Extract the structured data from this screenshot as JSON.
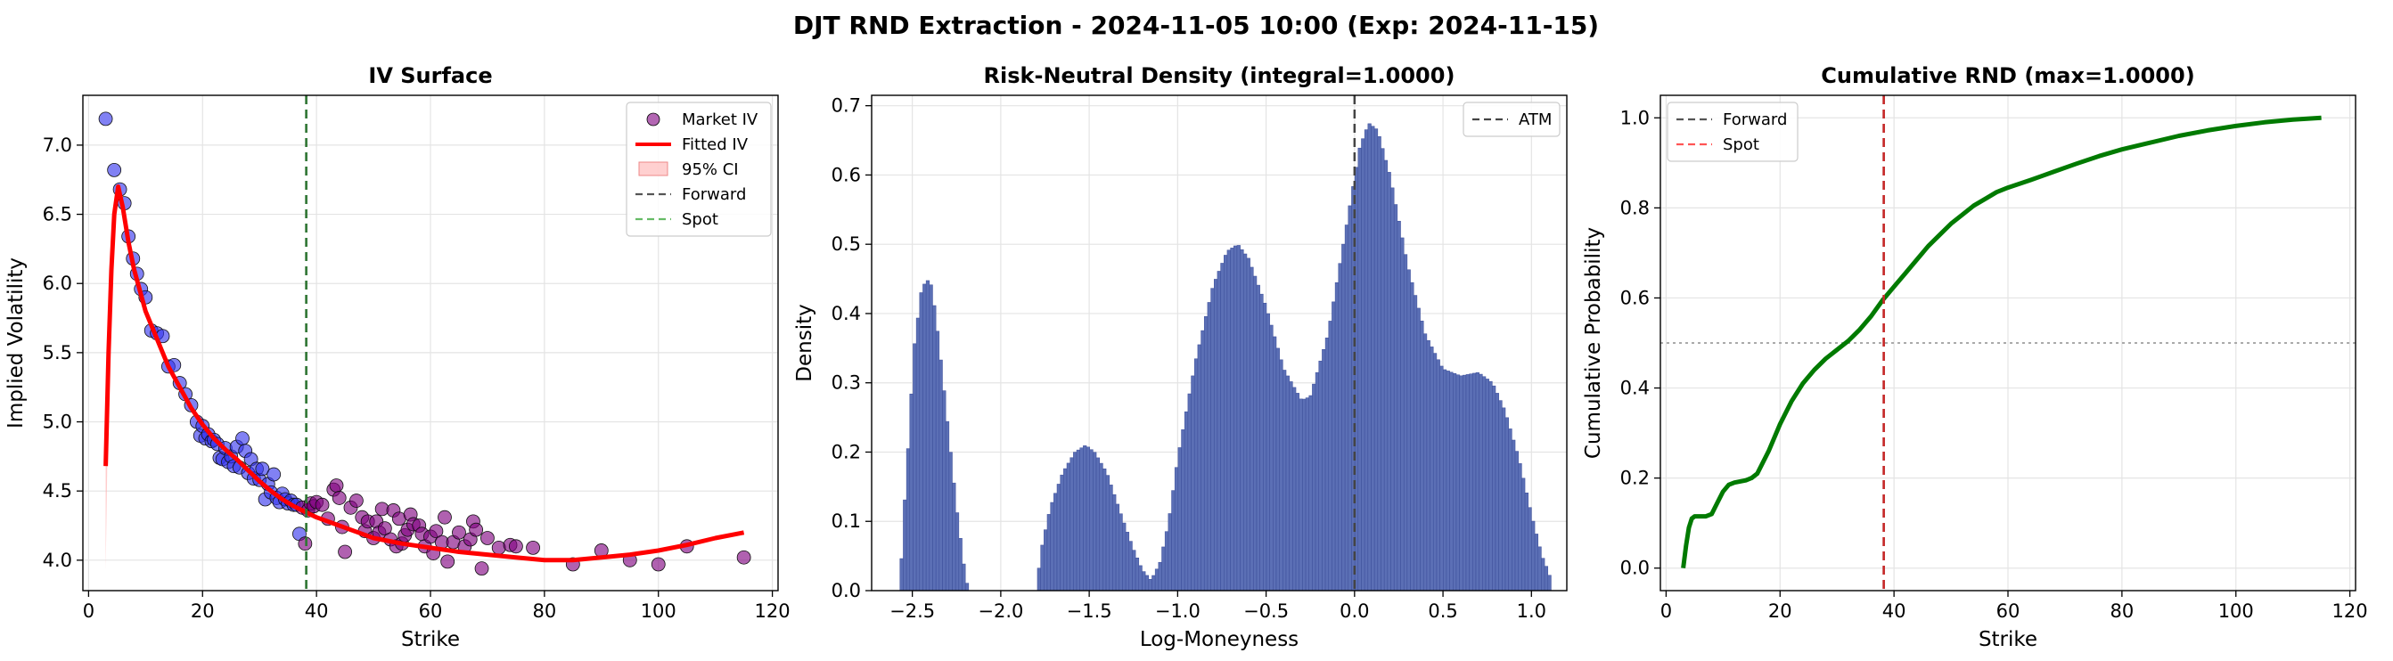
{
  "suptitle": "DJT RND Extraction - 2024-11-05 10:00 (Exp: 2024-11-15)",
  "colors": {
    "market_blue": "#3333ee",
    "market_purple": "#800080",
    "fit": "#ff0000",
    "ci": "#ffaaaa",
    "forward": "#555555",
    "spot": "#2e7d32",
    "spot_right": "#ff5555",
    "hist": "#5b6fb5",
    "cdf": "#007a00"
  },
  "chart_data": [
    {
      "type": "scatter",
      "title": "IV Surface",
      "xlabel": "Strike",
      "ylabel": "Implied Volatility",
      "xlim": [
        -1,
        121
      ],
      "ylim": [
        3.78,
        7.36
      ],
      "xticks": [
        0,
        20,
        40,
        60,
        80,
        100,
        120
      ],
      "yticks": [
        4.0,
        4.5,
        5.0,
        5.5,
        6.0,
        6.5,
        7.0
      ],
      "grid": true,
      "legend_position": "top-right",
      "legend": [
        "Market IV",
        "Fitted IV",
        "95% CI",
        "Forward",
        "Spot"
      ],
      "forward": 38.2,
      "spot": 38.2,
      "market_iv_points": [
        [
          3,
          7.19
        ],
        [
          4.5,
          6.82
        ],
        [
          5.5,
          6.68
        ],
        [
          6.3,
          6.58
        ],
        [
          7,
          6.34
        ],
        [
          7.8,
          6.18
        ],
        [
          8.5,
          6.07
        ],
        [
          9.2,
          5.96
        ],
        [
          10,
          5.9
        ],
        [
          11,
          5.66
        ],
        [
          12,
          5.64
        ],
        [
          13,
          5.62
        ],
        [
          14,
          5.4
        ],
        [
          15,
          5.41
        ],
        [
          16,
          5.28
        ],
        [
          17,
          5.2
        ],
        [
          18,
          5.12
        ],
        [
          19,
          5.0
        ],
        [
          19.6,
          4.9
        ],
        [
          20,
          4.97
        ],
        [
          20.5,
          4.88
        ],
        [
          21,
          4.91
        ],
        [
          21.6,
          4.86
        ],
        [
          22,
          4.87
        ],
        [
          22.6,
          4.84
        ],
        [
          23,
          4.74
        ],
        [
          23.5,
          4.73
        ],
        [
          24,
          4.81
        ],
        [
          24.5,
          4.71
        ],
        [
          25,
          4.75
        ],
        [
          25.5,
          4.68
        ],
        [
          26,
          4.82
        ],
        [
          26.5,
          4.67
        ],
        [
          27,
          4.88
        ],
        [
          27.5,
          4.79
        ],
        [
          28,
          4.63
        ],
        [
          28.5,
          4.73
        ],
        [
          29,
          4.59
        ],
        [
          29.5,
          4.66
        ],
        [
          30,
          4.58
        ],
        [
          30.5,
          4.66
        ],
        [
          31,
          4.44
        ],
        [
          31.5,
          4.55
        ],
        [
          32,
          4.49
        ],
        [
          32.5,
          4.62
        ],
        [
          33,
          4.45
        ],
        [
          33.5,
          4.42
        ],
        [
          34,
          4.48
        ],
        [
          34.5,
          4.44
        ],
        [
          35,
          4.41
        ],
        [
          35.5,
          4.43
        ],
        [
          36,
          4.4
        ],
        [
          36.5,
          4.4
        ],
        [
          37,
          4.19
        ],
        [
          37.5,
          4.38
        ],
        [
          38,
          4.12
        ],
        [
          38.5,
          4.36
        ],
        [
          39,
          4.41
        ],
        [
          39.5,
          4.39
        ],
        [
          40,
          4.42
        ],
        [
          41,
          4.4
        ],
        [
          42,
          4.3
        ],
        [
          43,
          4.51
        ],
        [
          43.5,
          4.54
        ],
        [
          44,
          4.45
        ],
        [
          44.5,
          4.24
        ],
        [
          45,
          4.06
        ],
        [
          46,
          4.38
        ],
        [
          47,
          4.43
        ],
        [
          48,
          4.31
        ],
        [
          48.5,
          4.21
        ],
        [
          49,
          4.28
        ],
        [
          50,
          4.16
        ],
        [
          50.5,
          4.28
        ],
        [
          51,
          4.2
        ],
        [
          51.5,
          4.37
        ],
        [
          52,
          4.23
        ],
        [
          53,
          4.15
        ],
        [
          53.5,
          4.36
        ],
        [
          54,
          4.1
        ],
        [
          54.5,
          4.3
        ],
        [
          55,
          4.12
        ],
        [
          55.5,
          4.18
        ],
        [
          56,
          4.22
        ],
        [
          56.5,
          4.33
        ],
        [
          57,
          4.26
        ],
        [
          58,
          4.25
        ],
        [
          58.5,
          4.19
        ],
        [
          59,
          4.1
        ],
        [
          60,
          4.17
        ],
        [
          60.5,
          4.05
        ],
        [
          61,
          4.21
        ],
        [
          62,
          4.13
        ],
        [
          62.5,
          4.31
        ],
        [
          63,
          3.99
        ],
        [
          64,
          4.13
        ],
        [
          65,
          4.2
        ],
        [
          66,
          4.1
        ],
        [
          67,
          4.15
        ],
        [
          67.5,
          4.28
        ],
        [
          68,
          4.22
        ],
        [
          69,
          3.94
        ],
        [
          70,
          4.16
        ],
        [
          72,
          4.09
        ],
        [
          74,
          4.11
        ],
        [
          75,
          4.1
        ],
        [
          78,
          4.09
        ],
        [
          85,
          3.97
        ],
        [
          90,
          4.07
        ],
        [
          95,
          4.0
        ],
        [
          100,
          3.97
        ],
        [
          105,
          4.1
        ],
        [
          115,
          4.02
        ]
      ],
      "fitted_iv": [
        [
          3,
          4.68
        ],
        [
          3.5,
          5.5
        ],
        [
          4,
          6.1
        ],
        [
          4.5,
          6.5
        ],
        [
          5.2,
          6.7
        ],
        [
          6,
          6.55
        ],
        [
          7,
          6.3
        ],
        [
          8,
          6.1
        ],
        [
          9,
          5.95
        ],
        [
          10,
          5.8
        ],
        [
          12,
          5.6
        ],
        [
          14,
          5.4
        ],
        [
          16,
          5.25
        ],
        [
          18,
          5.1
        ],
        [
          20,
          4.98
        ],
        [
          22,
          4.88
        ],
        [
          24,
          4.8
        ],
        [
          26,
          4.73
        ],
        [
          28,
          4.65
        ],
        [
          30,
          4.57
        ],
        [
          32,
          4.5
        ],
        [
          34,
          4.44
        ],
        [
          36,
          4.39
        ],
        [
          38,
          4.35
        ],
        [
          40,
          4.31
        ],
        [
          42,
          4.28
        ],
        [
          44,
          4.25
        ],
        [
          46,
          4.22
        ],
        [
          48,
          4.19
        ],
        [
          50,
          4.16
        ],
        [
          55,
          4.12
        ],
        [
          60,
          4.09
        ],
        [
          65,
          4.06
        ],
        [
          70,
          4.04
        ],
        [
          75,
          4.02
        ],
        [
          80,
          4.0
        ],
        [
          85,
          4.0
        ],
        [
          90,
          4.02
        ],
        [
          95,
          4.04
        ],
        [
          100,
          4.07
        ],
        [
          105,
          4.11
        ],
        [
          110,
          4.16
        ],
        [
          115,
          4.2
        ]
      ],
      "ci_band": [
        [
          3,
          3.93,
          4.68
        ],
        [
          3.5,
          5.3,
          5.55
        ],
        [
          4,
          6.0,
          6.15
        ]
      ]
    },
    {
      "type": "bar",
      "title": "Risk-Neutral Density (integral=1.0000)",
      "xlabel": "Log-Moneyness",
      "ylabel": "Density",
      "xlim": [
        -2.73,
        1.2
      ],
      "ylim": [
        0,
        0.715
      ],
      "xticks": [
        -2.5,
        -2.0,
        -1.5,
        -1.0,
        -0.5,
        0.0,
        0.5,
        1.0
      ],
      "yticks": [
        0.0,
        0.1,
        0.2,
        0.3,
        0.4,
        0.5,
        0.6,
        0.7
      ],
      "grid": true,
      "legend_position": "top-right",
      "legend": [
        "ATM"
      ],
      "atm": 0.0,
      "density_curve": [
        [
          -2.57,
          0.0
        ],
        [
          -2.55,
          0.1
        ],
        [
          -2.52,
          0.22
        ],
        [
          -2.49,
          0.35
        ],
        [
          -2.45,
          0.43
        ],
        [
          -2.42,
          0.45
        ],
        [
          -2.39,
          0.44
        ],
        [
          -2.35,
          0.36
        ],
        [
          -2.3,
          0.24
        ],
        [
          -2.25,
          0.12
        ],
        [
          -2.2,
          0.02
        ],
        [
          -2.18,
          0.0
        ],
        [
          -1.8,
          0.0
        ],
        [
          -1.77,
          0.06
        ],
        [
          -1.72,
          0.12
        ],
        [
          -1.65,
          0.17
        ],
        [
          -1.58,
          0.2
        ],
        [
          -1.52,
          0.21
        ],
        [
          -1.47,
          0.2
        ],
        [
          -1.4,
          0.17
        ],
        [
          -1.32,
          0.11
        ],
        [
          -1.25,
          0.06
        ],
        [
          -1.2,
          0.03
        ],
        [
          -1.15,
          0.015
        ],
        [
          -1.1,
          0.04
        ],
        [
          -1.05,
          0.1
        ],
        [
          -1.0,
          0.19
        ],
        [
          -0.9,
          0.33
        ],
        [
          -0.8,
          0.44
        ],
        [
          -0.72,
          0.49
        ],
        [
          -0.66,
          0.5
        ],
        [
          -0.6,
          0.48
        ],
        [
          -0.5,
          0.41
        ],
        [
          -0.4,
          0.32
        ],
        [
          -0.3,
          0.275
        ],
        [
          -0.25,
          0.28
        ],
        [
          -0.15,
          0.37
        ],
        [
          -0.05,
          0.52
        ],
        [
          0.03,
          0.64
        ],
        [
          0.08,
          0.675
        ],
        [
          0.13,
          0.665
        ],
        [
          0.2,
          0.6
        ],
        [
          0.3,
          0.47
        ],
        [
          0.4,
          0.37
        ],
        [
          0.5,
          0.32
        ],
        [
          0.6,
          0.31
        ],
        [
          0.7,
          0.315
        ],
        [
          0.78,
          0.3
        ],
        [
          0.85,
          0.26
        ],
        [
          0.93,
          0.19
        ],
        [
          1.0,
          0.11
        ],
        [
          1.06,
          0.05
        ],
        [
          1.1,
          0.025
        ],
        [
          1.12,
          0.0
        ]
      ]
    },
    {
      "type": "line",
      "title": "Cumulative RND (max=1.0000)",
      "xlabel": "Strike",
      "ylabel": "Cumulative Probability",
      "xlim": [
        -1,
        121
      ],
      "ylim": [
        -0.05,
        1.05
      ],
      "xticks": [
        0,
        20,
        40,
        60,
        80,
        100,
        120
      ],
      "yticks": [
        0.0,
        0.2,
        0.4,
        0.6,
        0.8,
        1.0
      ],
      "grid": true,
      "legend_position": "top-left",
      "legend": [
        "Forward",
        "Spot"
      ],
      "forward": 38.2,
      "spot": 38.2,
      "half_line": 0.5,
      "cdf": [
        [
          3,
          0.0
        ],
        [
          3.5,
          0.05
        ],
        [
          4,
          0.09
        ],
        [
          4.5,
          0.11
        ],
        [
          5,
          0.115
        ],
        [
          7,
          0.115
        ],
        [
          8,
          0.12
        ],
        [
          9,
          0.145
        ],
        [
          10,
          0.17
        ],
        [
          11,
          0.185
        ],
        [
          12,
          0.19
        ],
        [
          14,
          0.195
        ],
        [
          15,
          0.2
        ],
        [
          16,
          0.21
        ],
        [
          18,
          0.26
        ],
        [
          20,
          0.32
        ],
        [
          22,
          0.37
        ],
        [
          24,
          0.41
        ],
        [
          26,
          0.44
        ],
        [
          28,
          0.465
        ],
        [
          30,
          0.485
        ],
        [
          32,
          0.505
        ],
        [
          34,
          0.53
        ],
        [
          36,
          0.56
        ],
        [
          38,
          0.595
        ],
        [
          40,
          0.625
        ],
        [
          42,
          0.655
        ],
        [
          44,
          0.685
        ],
        [
          46,
          0.715
        ],
        [
          48,
          0.74
        ],
        [
          50,
          0.765
        ],
        [
          52,
          0.785
        ],
        [
          54,
          0.805
        ],
        [
          56,
          0.82
        ],
        [
          58,
          0.835
        ],
        [
          60,
          0.845
        ],
        [
          64,
          0.862
        ],
        [
          68,
          0.88
        ],
        [
          72,
          0.898
        ],
        [
          76,
          0.915
        ],
        [
          80,
          0.93
        ],
        [
          85,
          0.945
        ],
        [
          90,
          0.96
        ],
        [
          95,
          0.972
        ],
        [
          100,
          0.982
        ],
        [
          105,
          0.99
        ],
        [
          110,
          0.996
        ],
        [
          115,
          1.0
        ]
      ]
    }
  ]
}
